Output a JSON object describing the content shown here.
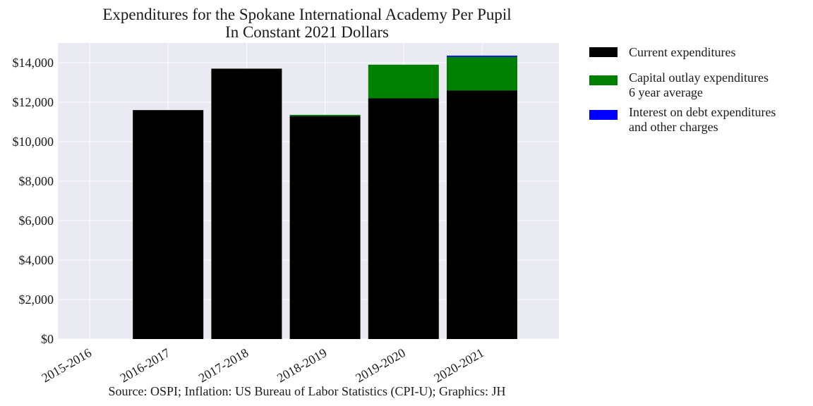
{
  "chart_data": {
    "type": "bar",
    "stacked": true,
    "title": "Expenditures for the Spokane International Academy Per Pupil",
    "subtitle": "In Constant 2021 Dollars",
    "source": "Source: OSPI; Inflation: US Bureau of Labor Statistics (CPI-U); Graphics: JH",
    "categories": [
      "2015-2016",
      "2016-2017",
      "2017-2018",
      "2018-2019",
      "2019-2020",
      "2020-2021"
    ],
    "yticks": [
      "$0",
      "$2,000",
      "$4,000",
      "$6,000",
      "$8,000",
      "$10,000",
      "$12,000",
      "$14,000"
    ],
    "ytick_values": [
      0,
      2000,
      4000,
      6000,
      8000,
      10000,
      12000,
      14000
    ],
    "ylim": [
      0,
      15000
    ],
    "grid": true,
    "legend_position": "outside-right",
    "series": [
      {
        "name_lines": [
          "Current expenditures"
        ],
        "color": "#000000",
        "values": [
          0,
          11600,
          13700,
          11300,
          12200,
          12600
        ]
      },
      {
        "name_lines": [
          "Capital outlay expenditures",
          "6 year average"
        ],
        "color": "#008000",
        "values": [
          0,
          0,
          0,
          60,
          1700,
          1700
        ]
      },
      {
        "name_lines": [
          "Interest on debt expenditures",
          "and other charges"
        ],
        "color": "#0000ff",
        "values": [
          0,
          0,
          0,
          0,
          0,
          60
        ]
      }
    ]
  },
  "colors": {
    "plot_background": "#eaeaf2",
    "grid": "#ffffff"
  }
}
